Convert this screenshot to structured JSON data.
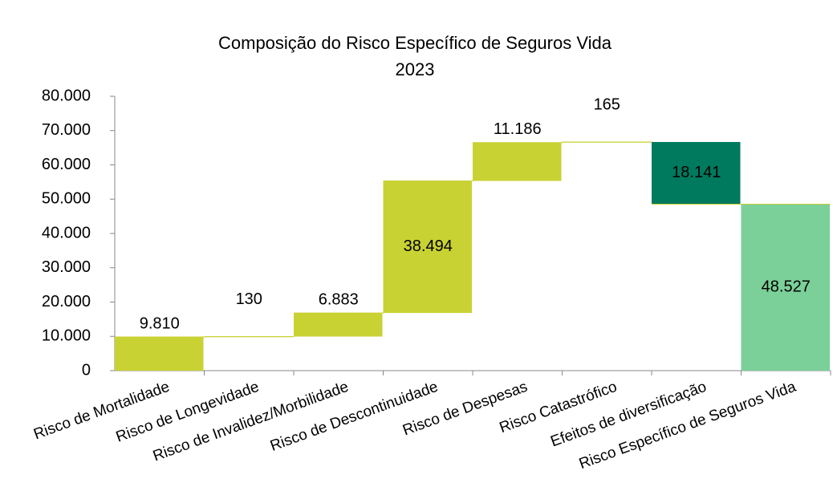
{
  "chart_data": {
    "type": "waterfall",
    "title": "Composição do Risco Específico de Seguros Vida",
    "subtitle": "2023",
    "categories": [
      "Risco de Mortalidade",
      "Risco de Longevidade",
      "Risco de Invalidez/Morbilidade",
      "Risco de Descontinuidade",
      "Risco de Despesas",
      "Risco Catastrófico",
      "Efeitos de diversificação",
      "Risco Específico de Seguros Vida"
    ],
    "values": [
      9810,
      130,
      6883,
      38494,
      11186,
      165,
      18141,
      48527
    ],
    "value_labels": [
      "9.810",
      "130",
      "6.883",
      "38.494",
      "11.186",
      "165",
      "18.141",
      "48.527"
    ],
    "measures": [
      "increase",
      "increase",
      "increase",
      "increase",
      "increase",
      "increase",
      "decrease",
      "total"
    ],
    "colors": {
      "increase": "#c9d233",
      "decrease": "#007a5e",
      "total": "#7bcf99"
    },
    "ylim": [
      0,
      80000
    ],
    "yticks": [
      0,
      {
        "value": 10000,
        "label": "10.000"
      },
      {
        "value": 20000,
        "label": "20.000"
      },
      {
        "value": 30000,
        "label": "30.000"
      },
      {
        "value": 40000,
        "label": "40.000"
      },
      {
        "value": 50000,
        "label": "50.000"
      },
      {
        "value": 60000,
        "label": "60.000"
      },
      {
        "value": 70000,
        "label": "70.000"
      },
      {
        "value": 80000,
        "label": "80.000"
      }
    ],
    "grid": false
  }
}
